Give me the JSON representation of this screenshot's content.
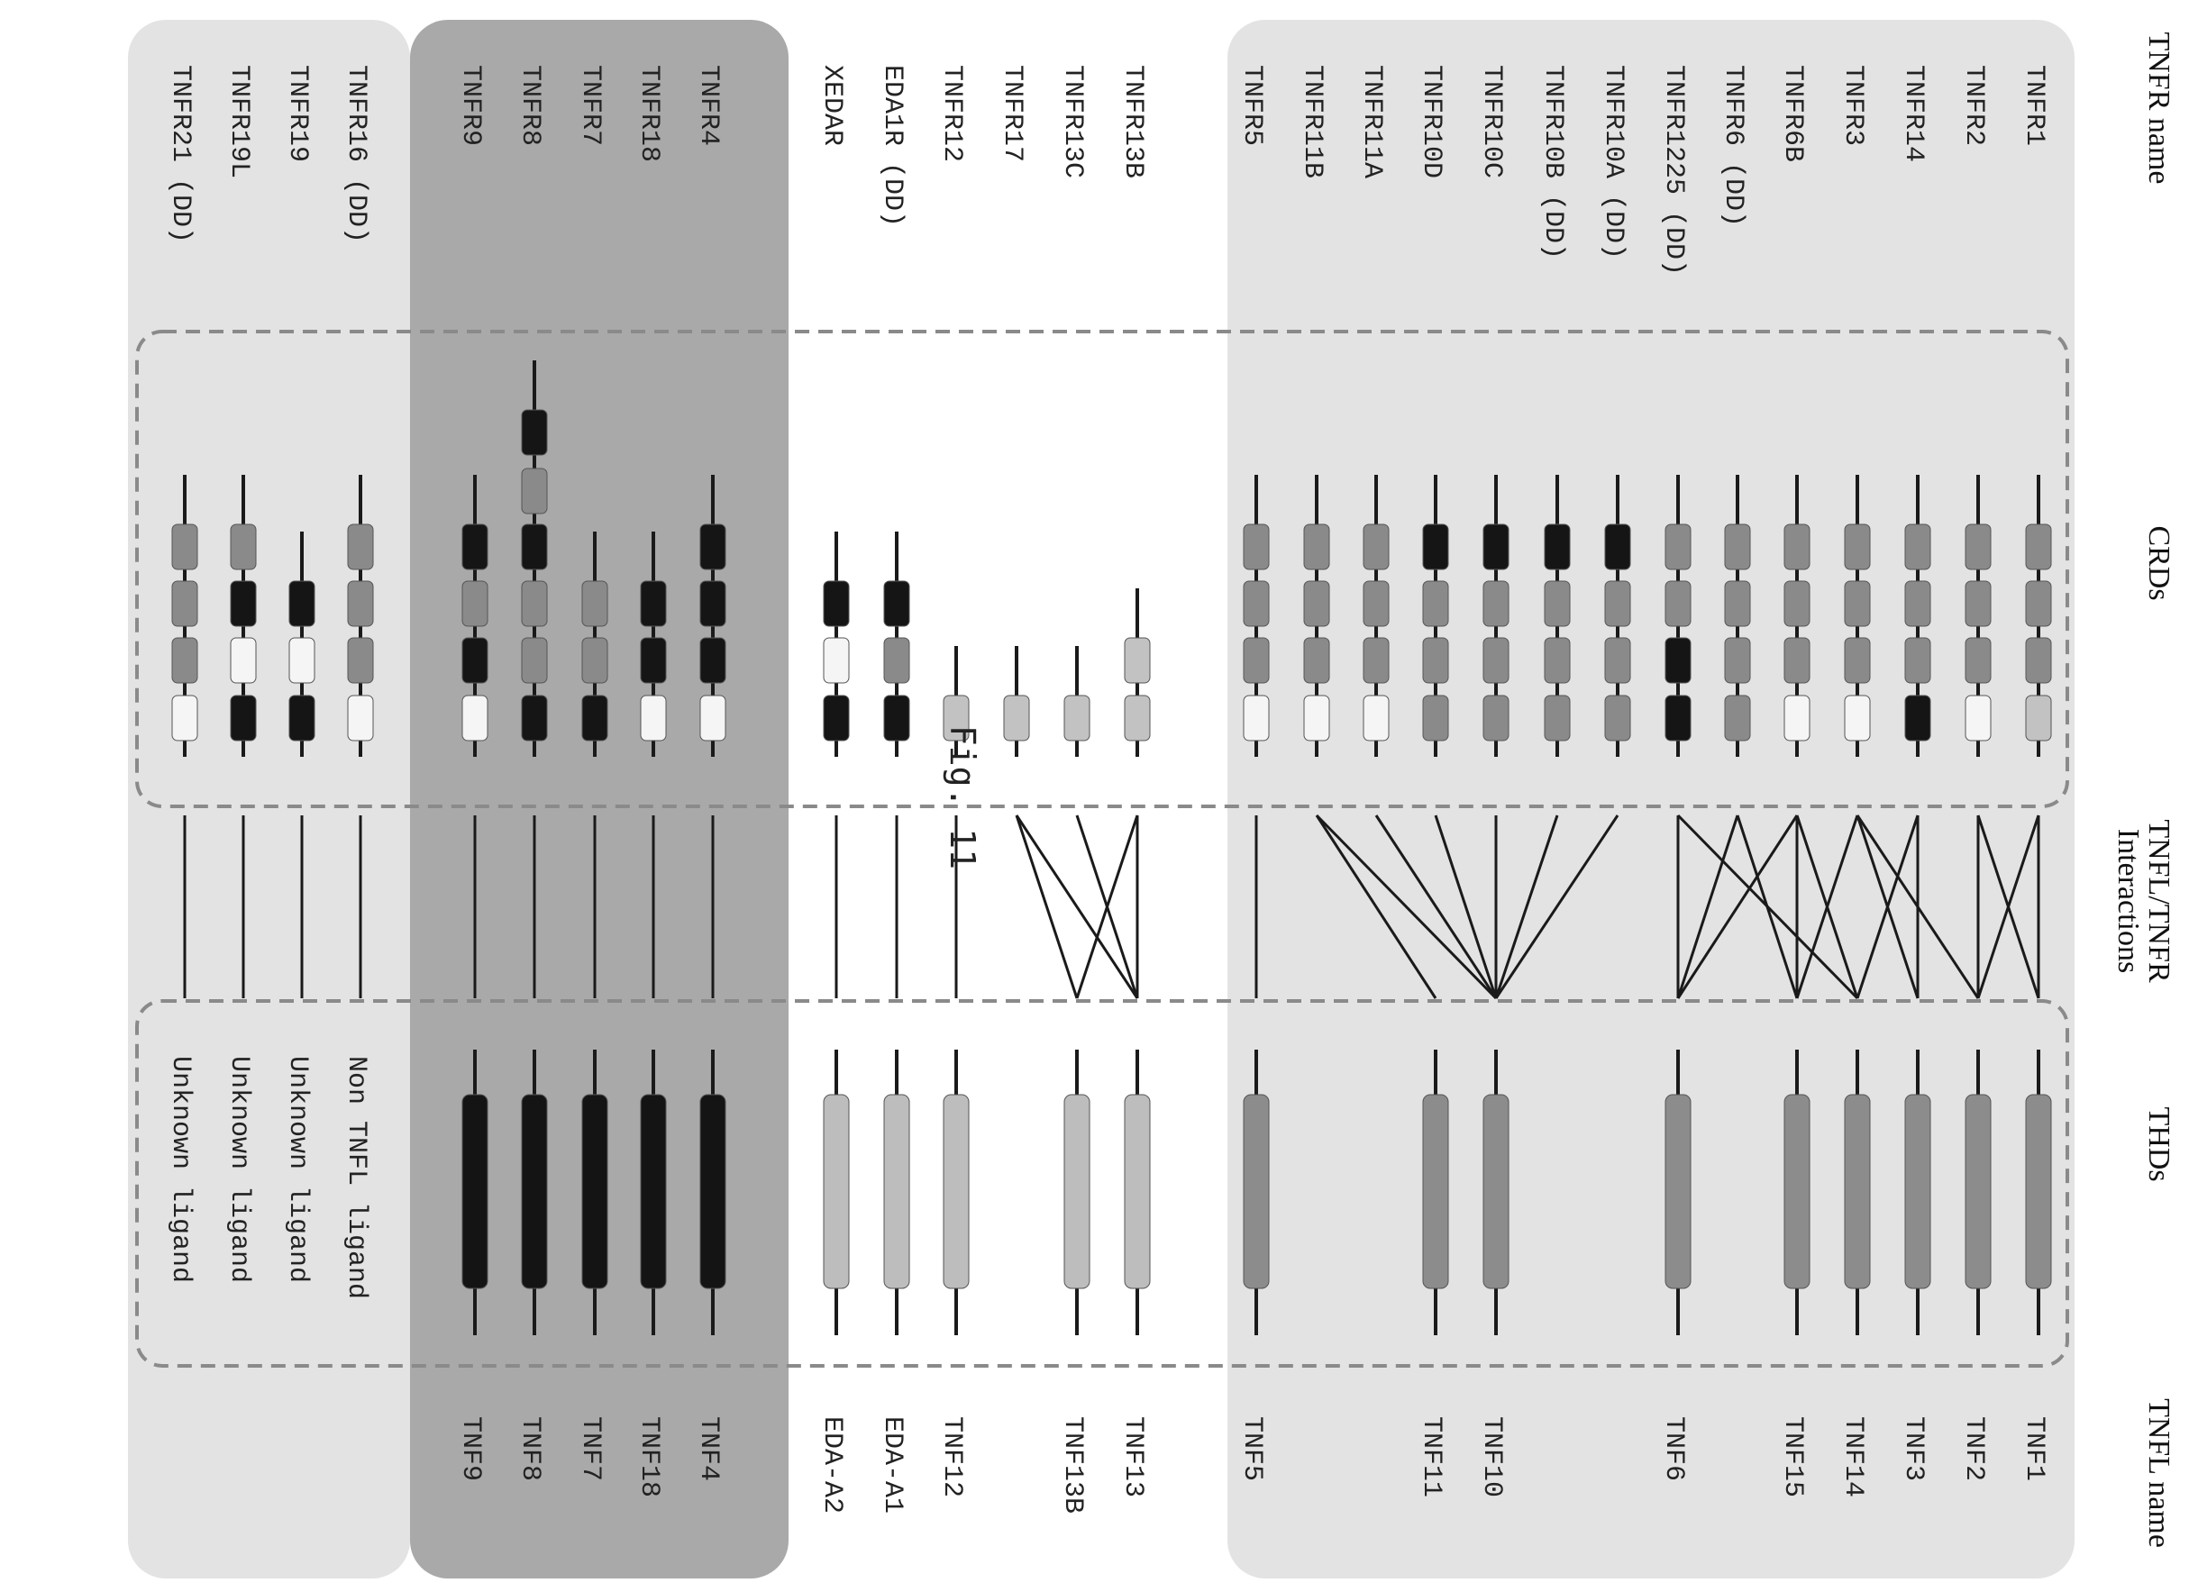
{
  "headers": {
    "tnfr_name": "TNFR name",
    "crds": "CRDs",
    "interactions_line1": "TNFL/TNFR",
    "interactions_line2": "Interactions",
    "thds": "THDs",
    "tnfl_name": "TNFL name"
  },
  "figure_label": "Fig. 11",
  "colors": {
    "group_bg_light": "#e3e3e3",
    "group_bg_dark": "#a9a9a9",
    "crd_mid": "#8a8a8a",
    "crd_light": "#c2c2c2",
    "crd_white": "#f5f5f5",
    "crd_black": "#151515",
    "thd_mid": "#8c8c8c",
    "thd_light": "#bdbdbd",
    "thd_black": "#141414",
    "line": "#1a1a1a",
    "dashed_box": "#8a8a8a"
  },
  "groups": [
    {
      "name": "conventional",
      "receptors": [
        {
          "name": "TNFR1",
          "crds": [
            "light",
            "mid",
            "mid",
            "mid"
          ],
          "interact": [
            0,
            1
          ]
        },
        {
          "name": "TNFR2",
          "crds": [
            "white",
            "mid",
            "mid",
            "mid"
          ],
          "interact": [
            0,
            1
          ]
        },
        {
          "name": "TNFR14",
          "crds": [
            "black",
            "mid",
            "mid",
            "mid"
          ],
          "interact": [
            2,
            3
          ]
        },
        {
          "name": "TNFR3",
          "crds": [
            "white",
            "mid",
            "mid",
            "mid"
          ],
          "interact": [
            1,
            2,
            4
          ]
        },
        {
          "name": "TNFR6B",
          "crds": [
            "white",
            "mid",
            "mid",
            "mid"
          ],
          "interact": [
            3,
            4,
            5
          ]
        },
        {
          "name": "TNFR6 (DD)",
          "crds": [
            "mid",
            "mid",
            "mid",
            "mid"
          ],
          "interact": [
            4,
            5
          ]
        },
        {
          "name": "TNFR1225 (DD)",
          "crds": [
            "black",
            "black",
            "mid",
            "mid"
          ],
          "interact": [
            3,
            5
          ]
        },
        {
          "name": "TNFR10A (DD)",
          "crds": [
            "mid",
            "mid",
            "mid",
            "black"
          ],
          "interact": [
            6
          ]
        },
        {
          "name": "TNFR10B (DD)",
          "crds": [
            "mid",
            "mid",
            "mid",
            "black"
          ],
          "interact": [
            6
          ]
        },
        {
          "name": "TNFR10C",
          "crds": [
            "mid",
            "mid",
            "mid",
            "black"
          ],
          "interact": [
            6
          ]
        },
        {
          "name": "TNFR10D",
          "crds": [
            "mid",
            "mid",
            "mid",
            "black"
          ],
          "interact": [
            6
          ]
        },
        {
          "name": "TNFR11A",
          "crds": [
            "white",
            "mid",
            "mid",
            "mid"
          ],
          "interact": [
            6
          ]
        },
        {
          "name": "TNFR11B",
          "crds": [
            "white",
            "mid",
            "mid",
            "mid"
          ],
          "interact": [
            6,
            7
          ]
        },
        {
          "name": "TNFR5",
          "crds": [
            "white",
            "mid",
            "mid",
            "mid"
          ],
          "interact": [
            8
          ]
        }
      ],
      "ligands": [
        {
          "name": "TNF1",
          "thd": "mid"
        },
        {
          "name": "TNF2",
          "thd": "mid"
        },
        {
          "name": "TNF3",
          "thd": "mid"
        },
        {
          "name": "TNF14",
          "thd": "mid"
        },
        {
          "name": "TNF15",
          "thd": "mid"
        },
        {
          "name": "TNF6",
          "thd": "mid"
        },
        {
          "name": "TNF10",
          "thd": "mid"
        },
        {
          "name": "TNF11",
          "thd": "mid"
        },
        {
          "name": "TNF5",
          "thd": "mid"
        }
      ]
    },
    {
      "name": "divergent",
      "receptors": [
        {
          "name": "TNFR13B",
          "crds": [
            "light",
            "light"
          ],
          "interact": [
            0,
            1
          ]
        },
        {
          "name": "TNFR13C",
          "crds": [
            "light"
          ],
          "interact": [
            0
          ]
        },
        {
          "name": "TNFR17",
          "crds": [
            "light"
          ],
          "interact": [
            0,
            1
          ]
        },
        {
          "name": "TNFR12",
          "crds": [
            "light"
          ],
          "interact": [
            2
          ]
        },
        {
          "name": "EDA1R (DD)",
          "crds": [
            "black",
            "mid",
            "black"
          ],
          "interact": [
            3
          ]
        },
        {
          "name": "XEDAR",
          "crds": [
            "black",
            "white",
            "black"
          ],
          "interact": [
            4
          ]
        }
      ],
      "ligands": [
        {
          "name": "TNF13",
          "thd": "light"
        },
        {
          "name": "TNF13B",
          "thd": "light"
        },
        {
          "name": "TNF12",
          "thd": "light"
        },
        {
          "name": "EDA-A1",
          "thd": "light"
        },
        {
          "name": "EDA-A2",
          "thd": "light"
        }
      ]
    },
    {
      "name": "dark",
      "receptors": [
        {
          "name": "TNFR4",
          "crds": [
            "white",
            "black",
            "black",
            "black"
          ],
          "interact": [
            0
          ]
        },
        {
          "name": "TNFR18",
          "crds": [
            "white",
            "black",
            "black"
          ],
          "interact": [
            1
          ]
        },
        {
          "name": "TNFR7",
          "crds": [
            "black",
            "mid",
            "mid"
          ],
          "interact": [
            2
          ]
        },
        {
          "name": "TNFR8",
          "crds": [
            "black",
            "mid",
            "mid",
            "black",
            "mid",
            "black"
          ],
          "interact": [
            3
          ]
        },
        {
          "name": "TNFR9",
          "crds": [
            "white",
            "black",
            "mid",
            "black"
          ],
          "interact": [
            4
          ]
        }
      ],
      "ligands": [
        {
          "name": "TNF4",
          "thd": "black"
        },
        {
          "name": "TNF18",
          "thd": "black"
        },
        {
          "name": "TNF7",
          "thd": "black"
        },
        {
          "name": "TNF8",
          "thd": "black"
        },
        {
          "name": "TNF9",
          "thd": "black"
        }
      ]
    },
    {
      "name": "orphan",
      "receptors": [
        {
          "name": "TNFR16 (DD)",
          "crds": [
            "white",
            "mid",
            "mid",
            "mid"
          ],
          "ligand_text": "Non TNFL ligand"
        },
        {
          "name": "TNFR19",
          "crds": [
            "black",
            "white",
            "black"
          ],
          "ligand_text": "Unknown ligand"
        },
        {
          "name": "TNFR19L",
          "crds": [
            "black",
            "white",
            "black",
            "mid"
          ],
          "ligand_text": "Unknown ligand"
        },
        {
          "name": "TNFR21 (DD)",
          "crds": [
            "white",
            "mid",
            "mid",
            "mid"
          ],
          "ligand_text": "Unknown ligand"
        }
      ]
    }
  ]
}
